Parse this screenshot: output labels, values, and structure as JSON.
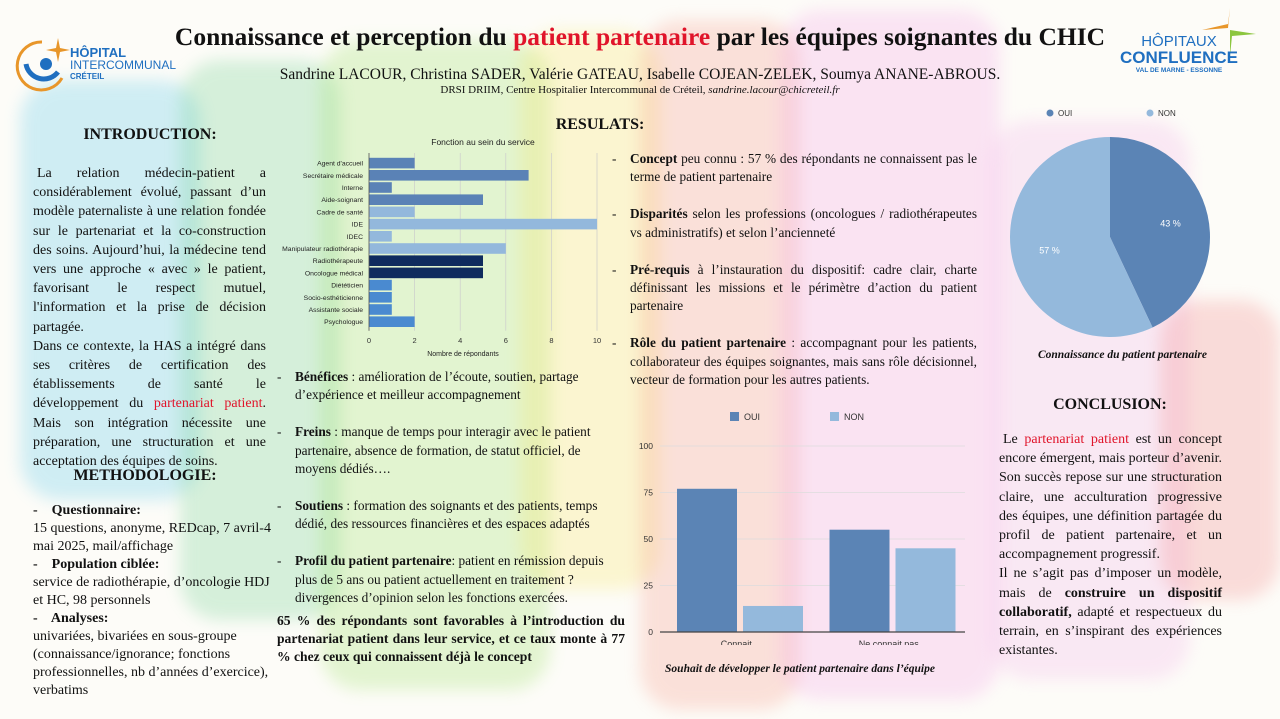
{
  "header": {
    "title_part1": "Connaissance et perception du ",
    "title_highlight": "patient partenaire",
    "title_part2": " par les équipes soignantes du CHIC",
    "authors": "Sandrine LACOUR, Christina SADER, Valérie GATEAU, Isabelle COJEAN-ZELEK, Soumya ANANE-ABROUS.",
    "affiliation": "DRSI DRIIM, Centre Hospitalier Intercommunal de Créteil, ",
    "email": "sandrine.lacour@chicreteil.fr",
    "logo_left": {
      "line1": "HÔPITAL",
      "line2": "INTERCOMMUNAL",
      "line3": "CRÉTEIL"
    },
    "logo_right": {
      "line1": "HÔPITAUX",
      "line2": "CONFLUENCE",
      "line3": "VAL DE MARNE - ESSONNE"
    }
  },
  "introduction": {
    "heading": "INTRODUCTION:",
    "p1": "La relation médecin-patient a considérablement évolué, passant d’un modèle paternaliste à une relation fondée sur le partenariat et la co-construction des soins. Aujourd’hui, la médecine tend vers une approche « avec » le patient, favorisant le respect mutuel, l'information et la prise de décision partagée.",
    "p2a": "Dans ce contexte, la HAS a intégré dans ses critères de certification des établissements de santé le développement du ",
    "p2_highlight": "partenariat patient",
    "p2b": ". Mais son intégration nécessite une préparation, une structuration et une acceptation des équipes de soins."
  },
  "methodology": {
    "heading": "METHODOLOGIE:",
    "items": [
      {
        "label": "Questionnaire:",
        "text": "15 questions, anonyme, REDcap, 7 avril-4 mai 2025, mail/affichage"
      },
      {
        "label": "Population ciblée:",
        "text": "service de radiothérapie, d’oncologie HDJ et HC, 98 personnels"
      },
      {
        "label": "Analyses:",
        "text": "univariées, bivariées en sous-groupe (connaissance/ignorance; fonctions professionnelles, nb d’années d’exercice), verbatims"
      }
    ]
  },
  "results": {
    "heading": "RESULATS:",
    "left_bullets": [
      {
        "label": "Bénéfices",
        "text": " : amélioration de l’écoute, soutien, partage d’expérience et meilleur accompagnement"
      },
      {
        "label": "Freins",
        "text": "  : manque de temps pour interagir avec le patient partenaire, absence de formation, de statut officiel, de moyens dédiés…."
      },
      {
        "label": "Soutiens",
        "text": " : formation des soignants et des patients, temps dédié, des ressources financières et des espaces adaptés"
      },
      {
        "label": "Profil du patient partenaire",
        "text": ": patient en rémission depuis plus de 5 ans ou patient actuellement en traitement ? divergences d’opinion selon les fonctions exercées."
      }
    ],
    "summary": "65 % des répondants sont favorables à l’introduction du partenariat patient dans leur service, et ce taux monte à 77 % chez ceux qui connaissent déjà le concept",
    "right_bullets": [
      {
        "label": "Concept",
        "text": " peu connu : 57 % des répondants ne connaissent pas le terme de patient partenaire"
      },
      {
        "label": "Disparités",
        "text": " selon les professions (oncologues / radiothérapeutes vs administratifs) et selon l’ancienneté"
      },
      {
        "label": "Pré-requis",
        "text": " à l’instauration du dispositif: cadre clair, charte définissant les missions et le périmètre d’action du patient partenaire"
      },
      {
        "label": "Rôle du patient partenaire",
        "text": " : accompagnant pour les patients, collaborateur des équipes soignantes, mais sans rôle décisionnel,  vecteur de formation pour les autres patients."
      }
    ]
  },
  "conclusion": {
    "heading": "CONCLUSION:",
    "p1a": "Le ",
    "p1_highlight": "partenariat patient",
    "p1b": " est un concept encore émergent, mais porteur d’avenir. Son succès repose sur une structuration claire, une acculturation progressive des équipes, une définition partagée du profil de patient partenaire, et un accompagnement progressif.",
    "p2a": "Il ne s’agit pas d’imposer un modèle, mais de ",
    "p2_bold": "construire un dispositif collaboratif,",
    "p2b": " adapté et respectueux du terrain, en s’inspirant des expériences existantes."
  },
  "colors": {
    "accent_red": "#e0142a",
    "oui": "#5b84b5",
    "non": "#94b9dc",
    "dark": "#0f2b5e",
    "mid": "#4a8ad0"
  },
  "chart_data": [
    {
      "type": "bar",
      "orientation": "horizontal",
      "title": "Fonction  au sein du service",
      "xlabel": "Nombre de répondants",
      "xlim": [
        0,
        10
      ],
      "xticks": [
        "0",
        "2",
        "4",
        "6",
        "8",
        "10"
      ],
      "categories": [
        "Agent d'accueil",
        "Secrétaire médicale",
        "Interne",
        "Aide-soignant",
        "Cadre de santé",
        "IDE",
        "IDEC",
        "Manipulateur radiothérapie",
        "Radiothérapeute",
        "Oncologue médical",
        "Diététicien",
        "Socio-esthéticienne",
        "Assistante sociale",
        "Psychologue"
      ],
      "values": [
        2,
        7,
        1,
        5,
        2,
        10,
        1,
        6,
        5,
        5,
        1,
        1,
        1,
        2
      ],
      "bar_colors": [
        "#5a82b6",
        "#5a82b6",
        "#5a82b6",
        "#5a82b6",
        "#93b8dc",
        "#93b8dc",
        "#93b8dc",
        "#93b8dc",
        "#0f2b5e",
        "#0f2b5e",
        "#4a8ad0",
        "#4a8ad0",
        "#4a8ad0",
        "#4a8ad0"
      ],
      "grid": true
    },
    {
      "type": "pie",
      "caption": "Connaissance du patient partenaire",
      "legend": [
        "OUI",
        "NON"
      ],
      "legend_position": "top",
      "values": [
        43,
        57
      ],
      "labels": [
        "43 %",
        "57 %"
      ]
    },
    {
      "type": "bar",
      "caption": "Souhait de développer le patient partenaire dans l’équipe",
      "categories": [
        "Connait",
        "Ne connait pas"
      ],
      "series": [
        {
          "name": "OUI",
          "values": [
            77,
            55
          ]
        },
        {
          "name": "NON",
          "values": [
            14,
            45
          ]
        }
      ],
      "ylim": [
        0,
        100
      ],
      "yticks": [
        "0",
        "25",
        "50",
        "75",
        "100"
      ],
      "legend_position": "top",
      "grid": true
    }
  ]
}
